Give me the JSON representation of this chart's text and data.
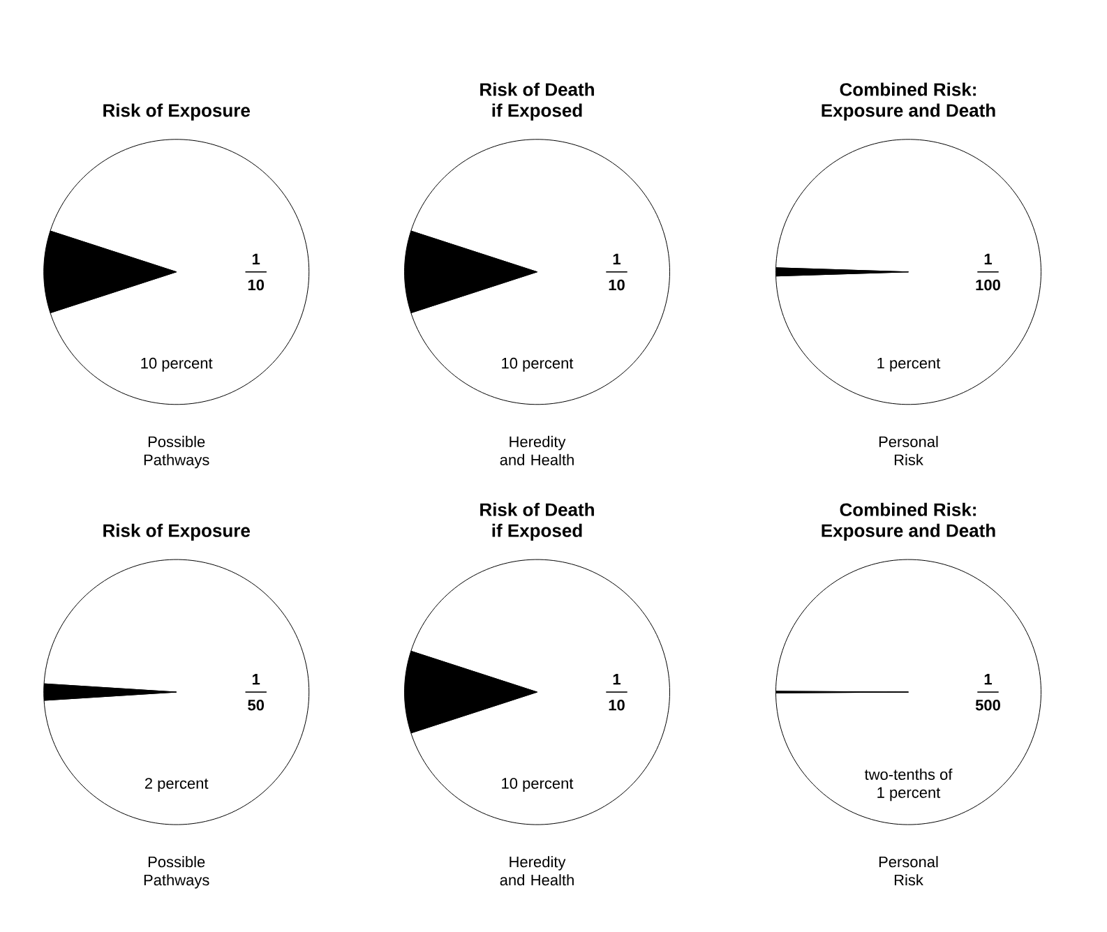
{
  "chart_data": [
    {
      "type": "pie",
      "title": "Risk of Exposure",
      "categories": [
        null,
        null
      ],
      "values": [
        10,
        90
      ],
      "colors": [
        "#000000",
        "#ffffff"
      ],
      "annotations": [
        "1",
        "10",
        "10 percent"
      ],
      "xlabel": "Possible Pathways"
    },
    {
      "type": "pie",
      "title": "Risk of Death",
      "subtitle": "if Exposed",
      "categories": [
        null,
        null
      ],
      "values": [
        10,
        90
      ],
      "colors": [
        "#000000",
        "#ffffff"
      ],
      "annotations": [
        "1",
        "10",
        "10 percent"
      ],
      "xlabel": "Heredity and Health"
    },
    {
      "type": "pie",
      "title": "Combined Risk:",
      "subtitle": "Exposure and Death",
      "categories": [
        null,
        null
      ],
      "values": [
        1,
        99
      ],
      "colors": [
        "#000000",
        "#ffffff"
      ],
      "annotations": [
        "1",
        "100",
        "1 percent"
      ],
      "xlabel": "Personal Risk"
    },
    {
      "type": "pie",
      "title": "Risk of Exposure",
      "categories": [
        null,
        null
      ],
      "values": [
        2,
        98
      ],
      "colors": [
        "#000000",
        "#ffffff"
      ],
      "annotations": [
        "1",
        "50",
        "2 percent"
      ],
      "xlabel": "Possible Pathways"
    },
    {
      "type": "pie",
      "title": "Risk of Death",
      "subtitle": "if Exposed",
      "categories": [
        null,
        null
      ],
      "values": [
        10,
        90
      ],
      "colors": [
        "#000000",
        "#ffffff"
      ],
      "annotations": [
        "1",
        "10",
        "10 percent"
      ],
      "xlabel": "Heredity and Health"
    },
    {
      "type": "pie",
      "title": "Combined Risk:",
      "subtitle": "Exposure and Death",
      "categories": [
        null,
        null
      ],
      "values": [
        0.2,
        99.8
      ],
      "colors": [
        "#000000",
        "#ffffff"
      ],
      "annotations": [
        "1",
        "500",
        "two-tenths of",
        "1 percent"
      ],
      "xlabel": "Personal Risk"
    }
  ]
}
